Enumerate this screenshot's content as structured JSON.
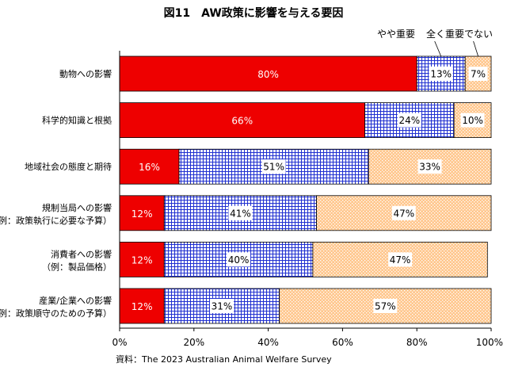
{
  "chart_data": {
    "type": "bar",
    "orientation": "horizontal",
    "stacked": true,
    "title": "図11　AW政策に影響を与える要因",
    "categories": [
      [
        "動物への影響"
      ],
      [
        "科学的知識と根拠"
      ],
      [
        "地域社会の態度と期待"
      ],
      [
        "規制当局への影響",
        "（例：政策執行に必要な予算）"
      ],
      [
        "消費者への影響",
        "（例：製品価格）"
      ],
      [
        "産業/企業への影響",
        "（例：政策順守のための予算）"
      ]
    ],
    "series": [
      {
        "name": "",
        "values": [
          80,
          66,
          16,
          12,
          12,
          12
        ],
        "color": "#ee0000",
        "pattern": "solid"
      },
      {
        "name": "やや重要",
        "values": [
          13,
          24,
          51,
          41,
          40,
          31
        ],
        "color": "#2233cc",
        "pattern": "grid"
      },
      {
        "name": "全く重要でない",
        "values": [
          7,
          10,
          33,
          47,
          47,
          57
        ],
        "color": "#ffc890",
        "pattern": "dots"
      }
    ],
    "data_labels": [
      [
        "80%",
        "13%",
        "7%"
      ],
      [
        "66%",
        "24%",
        "10%"
      ],
      [
        "16%",
        "51%",
        "33%"
      ],
      [
        "12%",
        "41%",
        "47%"
      ],
      [
        "12%",
        "40%",
        "47%"
      ],
      [
        "12%",
        "31%",
        "57%"
      ]
    ],
    "xlim": [
      0,
      100
    ],
    "xticks": [
      "0%",
      "20%",
      "40%",
      "60%",
      "80%",
      "100%"
    ],
    "source": "資料：The 2023 Australian Animal Welfare Survey"
  }
}
